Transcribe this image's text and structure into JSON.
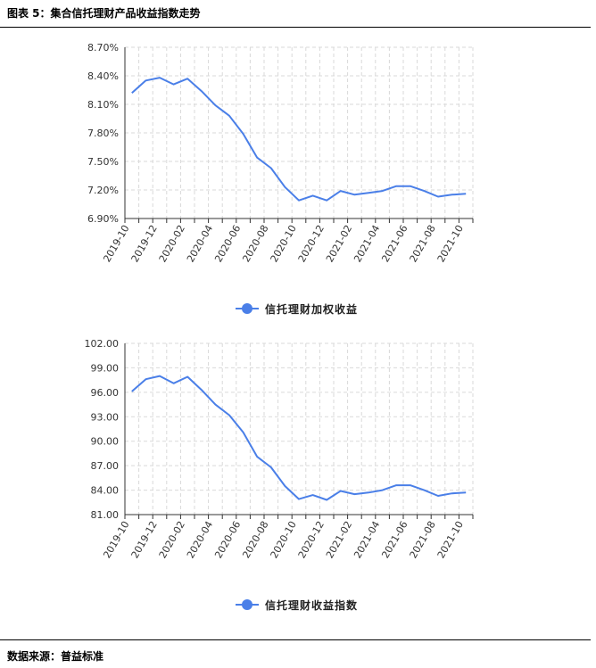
{
  "figure": {
    "title": "图表 5：集合信托理财产品收益指数走势",
    "source": "数据来源：普益标准"
  },
  "colors": {
    "line": "#4A7FE8",
    "grid": "#d9d9d9",
    "axis": "#333333"
  },
  "chart_data": [
    {
      "type": "line",
      "x": [
        "2019-10",
        "2019-11",
        "2019-12",
        "2020-01",
        "2020-02",
        "2020-03",
        "2020-04",
        "2020-05",
        "2020-06",
        "2020-07",
        "2020-08",
        "2020-09",
        "2020-10",
        "2020-11",
        "2020-12",
        "2021-01",
        "2021-02",
        "2021-03",
        "2021-04",
        "2021-05",
        "2021-06",
        "2021-07",
        "2021-08",
        "2021-09",
        "2021-10"
      ],
      "tick_labels": [
        "2019-10",
        "2019-12",
        "2020-02",
        "2020-04",
        "2020-06",
        "2020-08",
        "2020-10",
        "2020-12",
        "2021-02",
        "2021-04",
        "2021-06",
        "2021-08",
        "2021-10"
      ],
      "y_ticks": [
        "6.90%",
        "7.20%",
        "7.50%",
        "7.80%",
        "8.10%",
        "8.40%",
        "8.70%"
      ],
      "ylim": [
        6.9,
        8.7
      ],
      "grid": true,
      "legend_position": "bottom-center",
      "series": [
        {
          "name": "信托理财加权收益",
          "values": [
            8.22,
            8.35,
            8.38,
            8.31,
            8.37,
            8.24,
            8.09,
            7.98,
            7.79,
            7.54,
            7.43,
            7.23,
            7.09,
            7.14,
            7.09,
            7.19,
            7.15,
            7.17,
            7.19,
            7.24,
            7.24,
            7.19,
            7.13,
            7.15,
            7.16
          ]
        }
      ]
    },
    {
      "type": "line",
      "x": [
        "2019-10",
        "2019-11",
        "2019-12",
        "2020-01",
        "2020-02",
        "2020-03",
        "2020-04",
        "2020-05",
        "2020-06",
        "2020-07",
        "2020-08",
        "2020-09",
        "2020-10",
        "2020-11",
        "2020-12",
        "2021-01",
        "2021-02",
        "2021-03",
        "2021-04",
        "2021-05",
        "2021-06",
        "2021-07",
        "2021-08",
        "2021-09",
        "2021-10"
      ],
      "tick_labels": [
        "2019-10",
        "2019-12",
        "2020-02",
        "2020-04",
        "2020-06",
        "2020-08",
        "2020-10",
        "2020-12",
        "2021-02",
        "2021-04",
        "2021-06",
        "2021-08",
        "2021-10"
      ],
      "y_ticks": [
        "81.00",
        "84.00",
        "87.00",
        "90.00",
        "93.00",
        "96.00",
        "99.00",
        "102.00"
      ],
      "ylim": [
        81,
        102
      ],
      "grid": true,
      "legend_position": "bottom-center",
      "series": [
        {
          "name": "信托理财收益指数",
          "values": [
            96.1,
            97.6,
            98.0,
            97.1,
            97.9,
            96.3,
            94.5,
            93.2,
            91.1,
            88.1,
            86.8,
            84.5,
            82.9,
            83.4,
            82.8,
            83.9,
            83.5,
            83.7,
            84.0,
            84.6,
            84.6,
            84.0,
            83.3,
            83.6,
            83.7
          ]
        }
      ]
    }
  ]
}
